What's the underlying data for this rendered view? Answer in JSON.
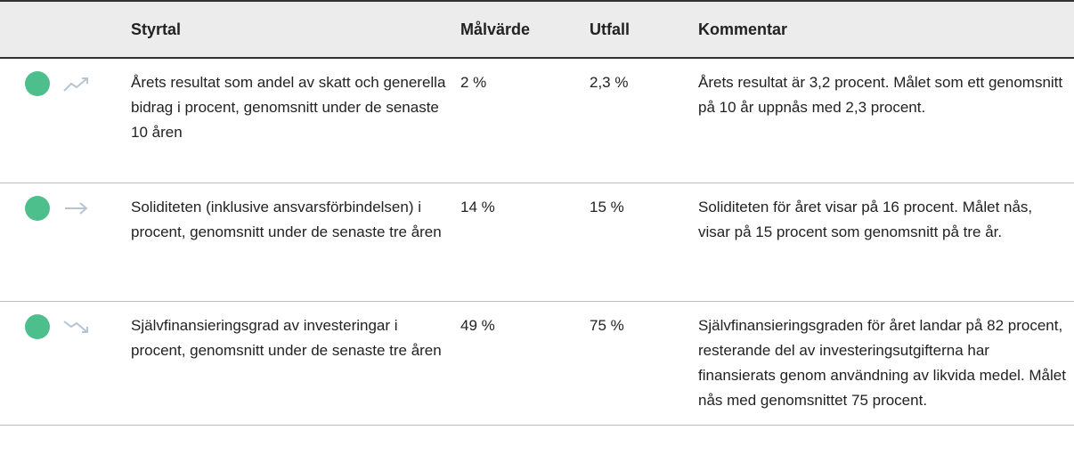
{
  "table": {
    "header": [
      "Styrtal",
      "Målvärde",
      "Utfall",
      "Kommentar"
    ],
    "rows": [
      [
        "Årets resultat som andel av skatt och generella bidrag i procent, genomsnitt under de senaste 10 åren",
        "2 %",
        "2,3 %",
        "Årets resultat är 3,2 procent. Målet som ett genomsnitt på 10 år uppnås med 2,3 procent."
      ],
      [
        "Soliditeten (inklusive ansvarsförbindelsen) i procent, genomsnitt under de senaste tre åren",
        "14 %",
        "15 %",
        "Soliditeten för året visar på 16 procent. Målet nås, visar på 15 procent som genomsnitt på tre år."
      ],
      [
        "Självfinansieringsgrad av investeringar i procent, genomsnitt under de senaste tre åren",
        "49 %",
        "75 %",
        "Självfinansieringsgraden för året landar på 82 procent, resterande del av investeringsutgifterna har finansierats genom användning av likvida medel. Målet nås med genomsnittet 75 procent."
      ]
    ]
  }
}
